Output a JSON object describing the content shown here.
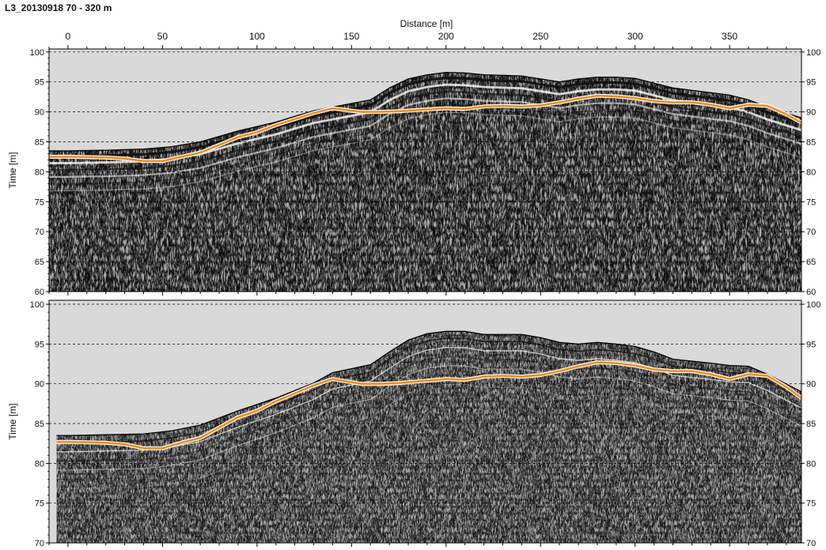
{
  "title": "L3_20130918 70 - 320 m",
  "colors": {
    "sky": "#d9d9d9",
    "pick_line": "#f08a1c",
    "pick_halo": "#ffffff",
    "frame": "#000000",
    "grid": "#000000"
  },
  "chart_data": [
    {
      "type": "line",
      "title": "L3_20130918 70 - 320 m",
      "xlabel": "Distance [m]",
      "ylabel": "Time [m]",
      "xlim": [
        -10,
        388
      ],
      "ylim": [
        60,
        100.5
      ],
      "x_ticks": [
        0,
        50,
        100,
        150,
        200,
        250,
        300,
        350
      ],
      "x_tick_labels": [
        "0",
        "50",
        "100",
        "150",
        "200",
        "250",
        "300",
        "350"
      ],
      "y_ticks": [
        60,
        65,
        70,
        75,
        80,
        85,
        90,
        95,
        100
      ],
      "y_tick_labels": [
        "60",
        "65",
        "70",
        "75",
        "80",
        "85",
        "90",
        "95",
        "100"
      ],
      "grid_horizontal": true,
      "surface_x": [
        -10,
        0,
        20,
        40,
        55,
        70,
        90,
        110,
        130,
        140,
        160,
        170,
        180,
        190,
        200,
        210,
        220,
        240,
        250,
        260,
        270,
        280,
        290,
        300,
        310,
        320,
        340,
        350,
        360,
        370,
        388
      ],
      "surface_y": [
        83.5,
        83.5,
        83.6,
        83.8,
        84.2,
        85.0,
        86.8,
        88.3,
        90.2,
        90.8,
        92.0,
        94.0,
        95.5,
        96.2,
        96.6,
        96.5,
        96.2,
        96.0,
        95.5,
        95.0,
        95.5,
        95.8,
        95.8,
        95.6,
        94.8,
        94.0,
        93.2,
        92.8,
        92.0,
        90.8,
        89.0
      ],
      "series": [
        {
          "x": [
            -10,
            0,
            20,
            30,
            40,
            50,
            60,
            70,
            80,
            90,
            100,
            110,
            120,
            130,
            140,
            145,
            155,
            165,
            175,
            185,
            195,
            200,
            210,
            220,
            230,
            240,
            250,
            260,
            270,
            280,
            290,
            300,
            310,
            320,
            330,
            340,
            350,
            360,
            370,
            380,
            388
          ],
          "y": [
            82.5,
            82.5,
            82.4,
            82.2,
            81.8,
            81.8,
            82.5,
            83.2,
            84.5,
            85.8,
            86.6,
            87.8,
            88.8,
            89.8,
            90.6,
            90.4,
            90.0,
            90.0,
            90.1,
            90.3,
            90.5,
            90.6,
            90.5,
            90.9,
            91.0,
            90.9,
            91.1,
            91.6,
            92.2,
            92.7,
            92.6,
            92.3,
            91.8,
            91.6,
            91.6,
            91.2,
            90.6,
            91.2,
            91.0,
            89.6,
            88.2
          ]
        }
      ]
    },
    {
      "type": "line",
      "xlabel": "",
      "ylabel": "Time [m]",
      "xlim": [
        -10,
        388
      ],
      "ylim": [
        70,
        100.5
      ],
      "y_ticks": [
        70,
        75,
        80,
        85,
        90,
        95,
        100
      ],
      "y_tick_labels": [
        "70",
        "75",
        "80",
        "85",
        "90",
        "95",
        "100"
      ],
      "grid_horizontal": true,
      "surface_x": [
        -6,
        0,
        20,
        40,
        55,
        70,
        90,
        110,
        130,
        140,
        160,
        170,
        180,
        190,
        200,
        210,
        220,
        240,
        250,
        260,
        270,
        280,
        290,
        300,
        310,
        320,
        340,
        350,
        360,
        370,
        388
      ],
      "surface_y": [
        83.5,
        83.5,
        83.6,
        83.7,
        84.1,
        84.8,
        86.6,
        88.2,
        90.1,
        91.4,
        92.4,
        94.0,
        95.5,
        96.3,
        96.6,
        96.6,
        96.2,
        96.2,
        95.8,
        95.2,
        95.0,
        95.2,
        95.0,
        94.7,
        94.0,
        93.1,
        92.6,
        92.3,
        92.2,
        91.2,
        89.0
      ],
      "series": [
        {
          "x": [
            -6,
            0,
            20,
            30,
            40,
            50,
            60,
            70,
            80,
            90,
            100,
            110,
            120,
            130,
            140,
            145,
            155,
            165,
            175,
            185,
            195,
            200,
            210,
            220,
            230,
            240,
            250,
            260,
            270,
            280,
            290,
            300,
            310,
            320,
            330,
            340,
            350,
            360,
            370,
            380,
            388
          ],
          "y": [
            82.7,
            82.7,
            82.6,
            82.4,
            81.9,
            81.9,
            82.6,
            83.2,
            84.5,
            85.8,
            86.6,
            87.8,
            88.8,
            89.8,
            90.6,
            90.4,
            90.0,
            90.0,
            90.1,
            90.3,
            90.5,
            90.6,
            90.5,
            90.9,
            91.0,
            90.9,
            91.1,
            91.6,
            92.2,
            92.7,
            92.6,
            92.3,
            91.8,
            91.6,
            91.6,
            91.2,
            90.6,
            91.2,
            91.0,
            89.6,
            88.2
          ]
        }
      ]
    }
  ]
}
